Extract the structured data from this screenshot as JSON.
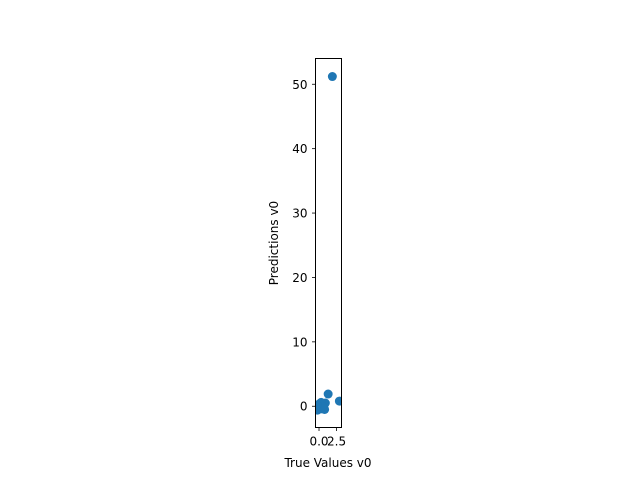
{
  "chart_data": {
    "type": "scatter",
    "xlabel": "True Values v0",
    "ylabel": "Predictions v0",
    "xlim": [
      -0.5,
      3.2
    ],
    "ylim": [
      -3.3,
      54.0
    ],
    "xticks": [
      0.0,
      2.5
    ],
    "xtick_labels": [
      "0.0",
      "2.5"
    ],
    "yticks": [
      0,
      10,
      20,
      30,
      40,
      50
    ],
    "ytick_labels": [
      "0",
      "10",
      "20",
      "30",
      "40",
      "50"
    ],
    "grid": false,
    "marker_color": "#1f77b4",
    "points": [
      {
        "x": 1.9,
        "y": 51.2
      },
      {
        "x": 1.3,
        "y": 1.9
      },
      {
        "x": 2.9,
        "y": 0.8
      },
      {
        "x": 0.1,
        "y": 0.4
      },
      {
        "x": 0.2,
        "y": 0.1
      },
      {
        "x": -0.1,
        "y": -0.2
      },
      {
        "x": -0.2,
        "y": -0.6
      },
      {
        "x": 0.4,
        "y": -0.4
      },
      {
        "x": 0.6,
        "y": 0.2
      },
      {
        "x": 0.8,
        "y": -0.5
      },
      {
        "x": 0.9,
        "y": 0.5
      },
      {
        "x": 0.3,
        "y": 0.6
      },
      {
        "x": 0.0,
        "y": 0.0
      },
      {
        "x": 0.5,
        "y": -0.1
      },
      {
        "x": -0.3,
        "y": 0.2
      }
    ]
  }
}
